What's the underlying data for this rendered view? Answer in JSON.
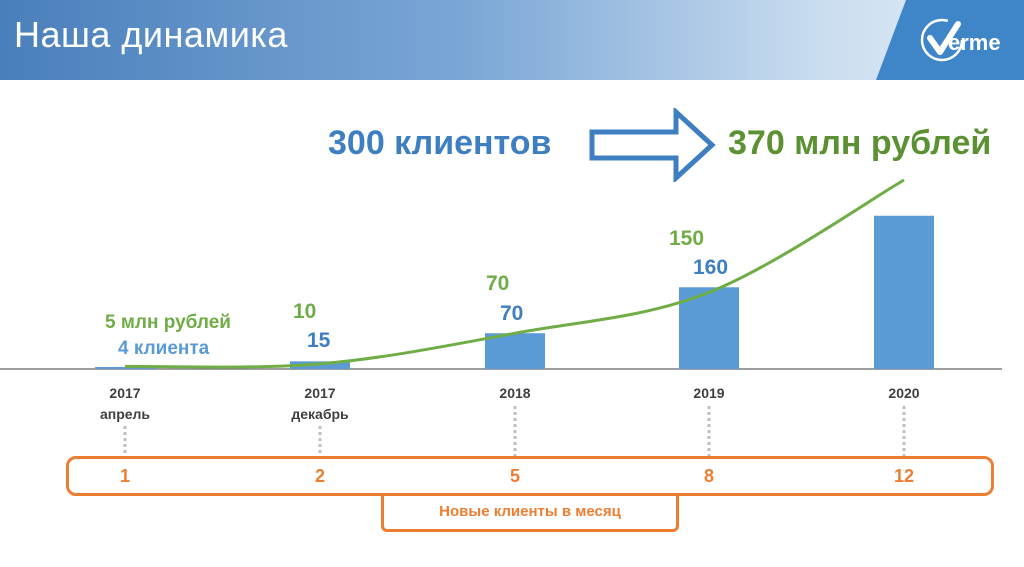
{
  "header": {
    "title": "Наша динамика",
    "logo_text": "erme",
    "background_color": "#4a7fbb"
  },
  "headline": {
    "clients": "300 клиентов",
    "revenue": "370 млн рублей"
  },
  "chart_data": {
    "type": "bar",
    "categories": [
      [
        "2017",
        "апрель"
      ],
      [
        "2017",
        "декабрь"
      ],
      [
        "2018"
      ],
      [
        "2019"
      ],
      [
        "2020"
      ]
    ],
    "series": [
      {
        "type": "bar",
        "color": "#5b9bd5",
        "values": [
          4,
          15,
          70,
          160,
          300
        ],
        "labels": [
          "4 клиента",
          "15",
          "70",
          "160",
          ""
        ]
      },
      {
        "type": "line",
        "color": "#70ad47",
        "values": [
          5,
          10,
          70,
          150,
          370
        ],
        "labels": [
          "5 млн рублей",
          "10",
          "70",
          "150",
          ""
        ]
      }
    ],
    "new_clients_per_month": {
      "title": "Новые клиенты в месяц",
      "values": [
        "1",
        "2",
        "5",
        "8",
        "12"
      ],
      "color": "#ed7d31"
    },
    "ylim": [
      0,
      370
    ],
    "grid": false,
    "legend": "none"
  }
}
